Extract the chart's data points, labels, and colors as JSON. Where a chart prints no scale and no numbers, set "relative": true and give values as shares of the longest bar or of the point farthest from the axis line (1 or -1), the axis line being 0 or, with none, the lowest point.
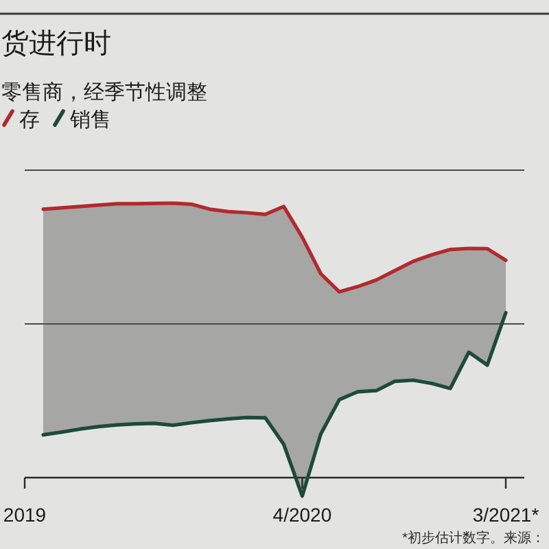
{
  "chart_data": {
    "type": "line",
    "title": "货进行时",
    "subtitle": "零售商，经季节性调整",
    "relative": true,
    "x": [
      "2019-02",
      "2019-03",
      "2019-04",
      "2019-05",
      "2019-06",
      "2019-07",
      "2019-08",
      "2019-09",
      "2019-10",
      "2019-11",
      "2019-12",
      "2020-01",
      "2020-02",
      "2020-03",
      "2020-04",
      "2020-05",
      "2020-06",
      "2020-07",
      "2020-08",
      "2020-09",
      "2020-10",
      "2020-11",
      "2020-12",
      "2021-01",
      "2021-02",
      "2021-03"
    ],
    "xlim": [
      "2019-01",
      "2021-04"
    ],
    "xticks": [
      {
        "value": "2019-01",
        "label": "2019"
      },
      {
        "value": "2020-04",
        "label": "4/2020"
      },
      {
        "value": "2021-03",
        "label": "3/2021*"
      }
    ],
    "series": [
      {
        "name": "存",
        "color": "#b22a2e",
        "values": [
          0.978,
          0.983,
          0.988,
          0.993,
          0.998,
          0.998,
          0.999,
          1.0,
          0.996,
          0.978,
          0.969,
          0.965,
          0.959,
          0.988,
          0.876,
          0.743,
          0.677,
          0.696,
          0.72,
          0.754,
          0.788,
          0.812,
          0.831,
          0.835,
          0.834,
          0.792
        ],
        "upper": [
          0.978,
          0.983,
          0.988,
          0.993,
          0.998,
          0.998,
          0.999,
          1.0,
          0.996,
          0.978,
          0.969,
          0.965,
          0.959,
          0.988,
          0.876,
          0.743,
          0.677,
          0.696,
          0.72,
          0.754,
          0.788,
          0.812,
          0.831,
          0.835,
          0.834,
          0.792
        ],
        "lower": [
          0.156,
          0.166,
          0.177,
          0.186,
          0.192,
          0.196,
          0.198,
          0.191,
          0.2,
          0.208,
          0.214,
          0.219,
          0.218,
          0.121,
          -0.067,
          0.159,
          0.284,
          0.313,
          0.317,
          0.351,
          0.355,
          0.343,
          0.325,
          0.457,
          0.41,
          0.601
        ]
      },
      {
        "name": "销售",
        "color": "#1d4a3c",
        "values": [
          0.156,
          0.166,
          0.177,
          0.186,
          0.192,
          0.196,
          0.198,
          0.191,
          0.2,
          0.208,
          0.214,
          0.219,
          0.218,
          0.121,
          -0.067,
          0.159,
          0.284,
          0.313,
          0.317,
          0.351,
          0.355,
          0.343,
          0.325,
          0.457,
          0.41,
          0.601
        ]
      }
    ],
    "ref_lines": [
      {
        "axis": "y",
        "value": 0.56,
        "color": "#4a4a4a"
      },
      {
        "axis": "y",
        "value": 1.12,
        "color": "#4a4a4a"
      }
    ],
    "legend": "top left",
    "annotations": [
      "*初步估计数字。来源："
    ]
  }
}
